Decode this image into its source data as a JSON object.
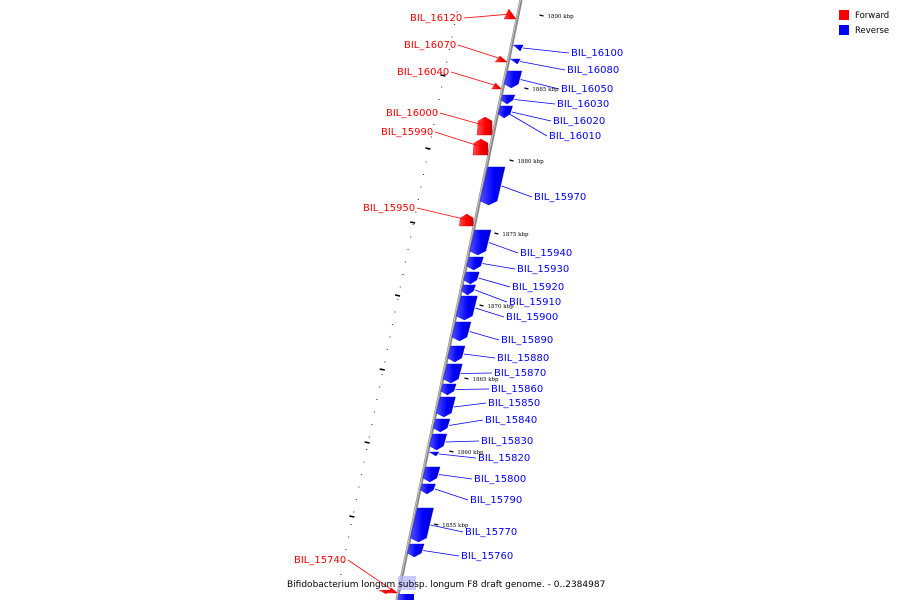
{
  "caption": "Bifidobacterium longum subsp. longum F8 draft genome. - 0..2384987",
  "legend": [
    {
      "label": "Forward",
      "color": "#ff0000"
    },
    {
      "label": "Reverse",
      "color": "#0000ff"
    }
  ],
  "colors": {
    "forward": "#ff0000",
    "reverse": "#0000ff",
    "backbone": "#999999"
  },
  "kbp_marks": [
    "1890 kbp",
    "1885 kbp",
    "1880 kbp",
    "1875 kbp",
    "1870 kbp",
    "1865 kbp",
    "1860 kbp",
    "1855 kbp"
  ],
  "genes": [
    {
      "name": "BIL_16120",
      "strand": "forward"
    },
    {
      "name": "BIL_16100",
      "strand": "reverse"
    },
    {
      "name": "BIL_16080",
      "strand": "reverse"
    },
    {
      "name": "BIL_16070",
      "strand": "forward"
    },
    {
      "name": "BIL_16050",
      "strand": "reverse"
    },
    {
      "name": "BIL_16040",
      "strand": "forward"
    },
    {
      "name": "BIL_16030",
      "strand": "reverse"
    },
    {
      "name": "BIL_16020",
      "strand": "reverse"
    },
    {
      "name": "BIL_16010",
      "strand": "reverse"
    },
    {
      "name": "BIL_16000",
      "strand": "forward"
    },
    {
      "name": "BIL_15990",
      "strand": "forward"
    },
    {
      "name": "BIL_15970",
      "strand": "reverse"
    },
    {
      "name": "BIL_15950",
      "strand": "forward"
    },
    {
      "name": "BIL_15940",
      "strand": "reverse"
    },
    {
      "name": "BIL_15930",
      "strand": "reverse"
    },
    {
      "name": "BIL_15920",
      "strand": "reverse"
    },
    {
      "name": "BIL_15910",
      "strand": "reverse"
    },
    {
      "name": "BIL_15900",
      "strand": "reverse"
    },
    {
      "name": "BIL_15890",
      "strand": "reverse"
    },
    {
      "name": "BIL_15880",
      "strand": "reverse"
    },
    {
      "name": "BIL_15870",
      "strand": "reverse"
    },
    {
      "name": "BIL_15860",
      "strand": "reverse"
    },
    {
      "name": "BIL_15850",
      "strand": "reverse"
    },
    {
      "name": "BIL_15840",
      "strand": "reverse"
    },
    {
      "name": "BIL_15830",
      "strand": "reverse"
    },
    {
      "name": "BIL_15820",
      "strand": "reverse"
    },
    {
      "name": "BIL_15800",
      "strand": "reverse"
    },
    {
      "name": "BIL_15790",
      "strand": "reverse"
    },
    {
      "name": "BIL_15770",
      "strand": "reverse"
    },
    {
      "name": "BIL_15760",
      "strand": "reverse"
    },
    {
      "name": "BIL_15740",
      "strand": "forward"
    }
  ]
}
